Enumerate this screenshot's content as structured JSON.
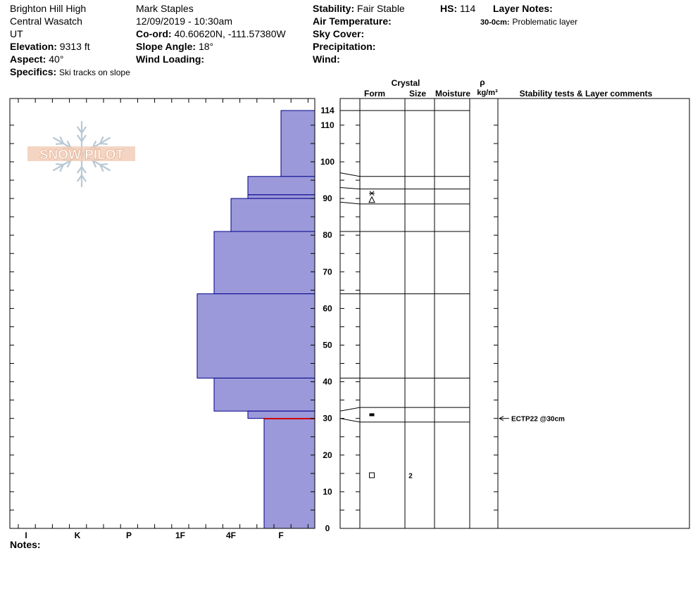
{
  "header": {
    "location": "Brighton Hill High",
    "range": "Central Wasatch",
    "state": "UT",
    "elevation_label": "Elevation:",
    "elevation": "9313 ft",
    "aspect_label": "Aspect:",
    "aspect": "40°",
    "specifics_label": "Specifics:",
    "specifics": "Ski tracks on slope",
    "observer": "Mark Staples",
    "datetime": "12/09/2019 - 10:30am",
    "coord_label": "Co-ord:",
    "coord": "40.60620N, -111.57380W",
    "slope_label": "Slope Angle:",
    "slope": "18°",
    "wind_loading_label": "Wind Loading:",
    "stability_label": "Stability:",
    "stability": "Fair Stable",
    "air_temp_label": "Air Temperature:",
    "sky_label": "Sky Cover:",
    "precip_label": "Precipitation:",
    "wind_label": "Wind:",
    "hs_label": "HS:",
    "hs": "114",
    "layer_notes_label": "Layer Notes:",
    "layer_note_range": "30-0cm:",
    "layer_note_text": "Problematic layer",
    "notes_label": "Notes:"
  },
  "logo": {
    "text": "SNOW PILOT"
  },
  "table_headers": {
    "crystal": "Crystal",
    "form": "Form",
    "size": "Size",
    "moisture": "Moisture",
    "rho": "ρ",
    "density_unit": "kg/m³",
    "stability": "Stability tests & Layer comments"
  },
  "chart_data": {
    "type": "bar",
    "orientation": "horizontal",
    "y_axis": {
      "label": "",
      "range": [
        0,
        114
      ],
      "ticks": [
        0,
        10,
        20,
        30,
        40,
        50,
        60,
        70,
        80,
        90,
        100,
        110,
        114
      ]
    },
    "x_axis": {
      "label": "",
      "categories": [
        "I",
        "K",
        "P",
        "1F",
        "4F",
        "F"
      ],
      "direction": "hardness increasing to the left"
    },
    "hardness_layers": [
      {
        "top": 114,
        "bottom": 96,
        "hardness": "F"
      },
      {
        "top": 96,
        "bottom": 91,
        "hardness": "4F-"
      },
      {
        "top": 91,
        "bottom": 90,
        "hardness": "4F-"
      },
      {
        "top": 90,
        "bottom": 81,
        "hardness": "4F"
      },
      {
        "top": 81,
        "bottom": 64,
        "hardness": "4F+"
      },
      {
        "top": 64,
        "bottom": 41,
        "hardness": "1F-"
      },
      {
        "top": 41,
        "bottom": 32,
        "hardness": "4F+"
      },
      {
        "top": 32,
        "bottom": 30,
        "hardness": "4F-"
      },
      {
        "top": 30,
        "bottom": 0,
        "hardness": "F+"
      }
    ],
    "layer_boundaries": [
      114,
      96,
      92.6,
      88.5,
      81,
      64,
      41,
      33,
      29,
      0
    ],
    "layer_boundary_chart_heights": [
      114,
      97,
      93,
      89,
      81,
      64,
      41,
      32,
      30,
      0
    ],
    "layers": [
      {
        "top": 92.6,
        "bottom": 88.5,
        "form": "precipitation particles / rounded faceted",
        "form_symbols": [
          "star-icon",
          "triangle-icon"
        ],
        "size": "",
        "moisture": ""
      },
      {
        "top": 33,
        "bottom": 29,
        "form": "melt-freeze crust",
        "form_symbols": [
          "filled-rect-icon"
        ],
        "size": "",
        "moisture": ""
      },
      {
        "top": 29,
        "bottom": 0,
        "form": "faceted crystals",
        "form_symbols": [
          "square-icon"
        ],
        "size": "2",
        "moisture": ""
      }
    ],
    "failure_layer_height": 30,
    "stability_comments": [
      {
        "height": 30,
        "text": "ECTP22 @30cm"
      }
    ],
    "colors": {
      "fill": "#9b99d9",
      "outline": "#00008b",
      "failure": "#cc0000"
    }
  }
}
